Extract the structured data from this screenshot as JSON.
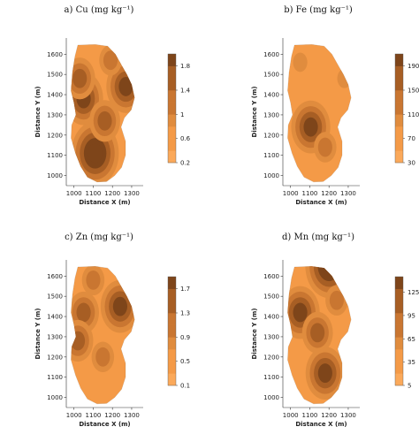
{
  "chart_data": [
    {
      "type": "contour",
      "title": "a) Cu (mg kg⁻¹)",
      "xlabel": "Distance X (m)",
      "ylabel": "Distance Y (m)",
      "xticks": [
        1000,
        1100,
        1200,
        1300
      ],
      "yticks": [
        1000,
        1100,
        1200,
        1300,
        1400,
        1500,
        1600
      ],
      "xlim": [
        960,
        1360
      ],
      "ylim": [
        950,
        1680
      ],
      "colorbar": {
        "ticks": [
          "0.2",
          "0.6",
          "1",
          "1.4",
          "1.8"
        ],
        "range": [
          0.2,
          2.0
        ]
      },
      "hotspots": [
        {
          "x": 1050,
          "y": 1380,
          "value": 1.6
        },
        {
          "x": 1030,
          "y": 1480,
          "value": 1.3
        },
        {
          "x": 1120,
          "y": 1200,
          "value": 1.4
        },
        {
          "x": 1110,
          "y": 1110,
          "value": 1.9
        },
        {
          "x": 1270,
          "y": 1440,
          "value": 1.5
        },
        {
          "x": 1190,
          "y": 1570,
          "value": 1.0
        },
        {
          "x": 1160,
          "y": 1270,
          "value": 1.1
        }
      ]
    },
    {
      "type": "contour",
      "title": "b) Fe (mg kg⁻¹)",
      "xlabel": "Distance X (m)",
      "ylabel": "Distance Y (m)",
      "xticks": [
        1000,
        1100,
        1200,
        1300
      ],
      "yticks": [
        1000,
        1100,
        1200,
        1300,
        1400,
        1500,
        1600
      ],
      "xlim": [
        960,
        1360
      ],
      "ylim": [
        950,
        1680
      ],
      "colorbar": {
        "ticks": [
          "30",
          "70",
          "110",
          "150",
          "190"
        ],
        "range": [
          30,
          210
        ]
      },
      "hotspots": [
        {
          "x": 1105,
          "y": 1240,
          "value": 175
        },
        {
          "x": 1180,
          "y": 1140,
          "value": 95
        },
        {
          "x": 1050,
          "y": 1560,
          "value": 75
        },
        {
          "x": 1280,
          "y": 1480,
          "value": 70
        }
      ]
    },
    {
      "type": "contour",
      "title": "c) Zn (mg kg⁻¹)",
      "xlabel": "Distance X (m)",
      "ylabel": "Distance Y (m)",
      "xticks": [
        1000,
        1100,
        1200,
        1300
      ],
      "yticks": [
        1000,
        1100,
        1200,
        1300,
        1400,
        1500,
        1600
      ],
      "xlim": [
        960,
        1360
      ],
      "ylim": [
        950,
        1680
      ],
      "colorbar": {
        "ticks": [
          "0.1",
          "0.5",
          "0.9",
          "1.3",
          "1.7"
        ],
        "range": [
          0.1,
          1.9
        ]
      },
      "hotspots": [
        {
          "x": 1240,
          "y": 1450,
          "value": 1.7
        },
        {
          "x": 1050,
          "y": 1420,
          "value": 1.2
        },
        {
          "x": 1020,
          "y": 1280,
          "value": 1.0
        },
        {
          "x": 1150,
          "y": 1200,
          "value": 0.9
        },
        {
          "x": 1100,
          "y": 1580,
          "value": 0.9
        }
      ]
    },
    {
      "type": "contour",
      "title": "d) Mn (mg kg⁻¹)",
      "xlabel": "Distance X (m)",
      "ylabel": "Distance Y (m)",
      "xticks": [
        1000,
        1100,
        1200,
        1300
      ],
      "yticks": [
        1000,
        1100,
        1200,
        1300,
        1400,
        1500,
        1600
      ],
      "xlim": [
        960,
        1360
      ],
      "ylim": [
        950,
        1680
      ],
      "colorbar": {
        "ticks": [
          "5",
          "35",
          "65",
          "95",
          "125"
        ],
        "range": [
          5,
          145
        ]
      },
      "hotspots": [
        {
          "x": 1200,
          "y": 1650,
          "value": 140
        },
        {
          "x": 1050,
          "y": 1420,
          "value": 110
        },
        {
          "x": 1180,
          "y": 1120,
          "value": 110
        },
        {
          "x": 1140,
          "y": 1320,
          "value": 75
        },
        {
          "x": 1240,
          "y": 1480,
          "value": 60
        }
      ]
    }
  ],
  "palette": [
    "#fba95a",
    "#f49a47",
    "#e08c3e",
    "#c97631",
    "#a75e24",
    "#7e451a"
  ]
}
